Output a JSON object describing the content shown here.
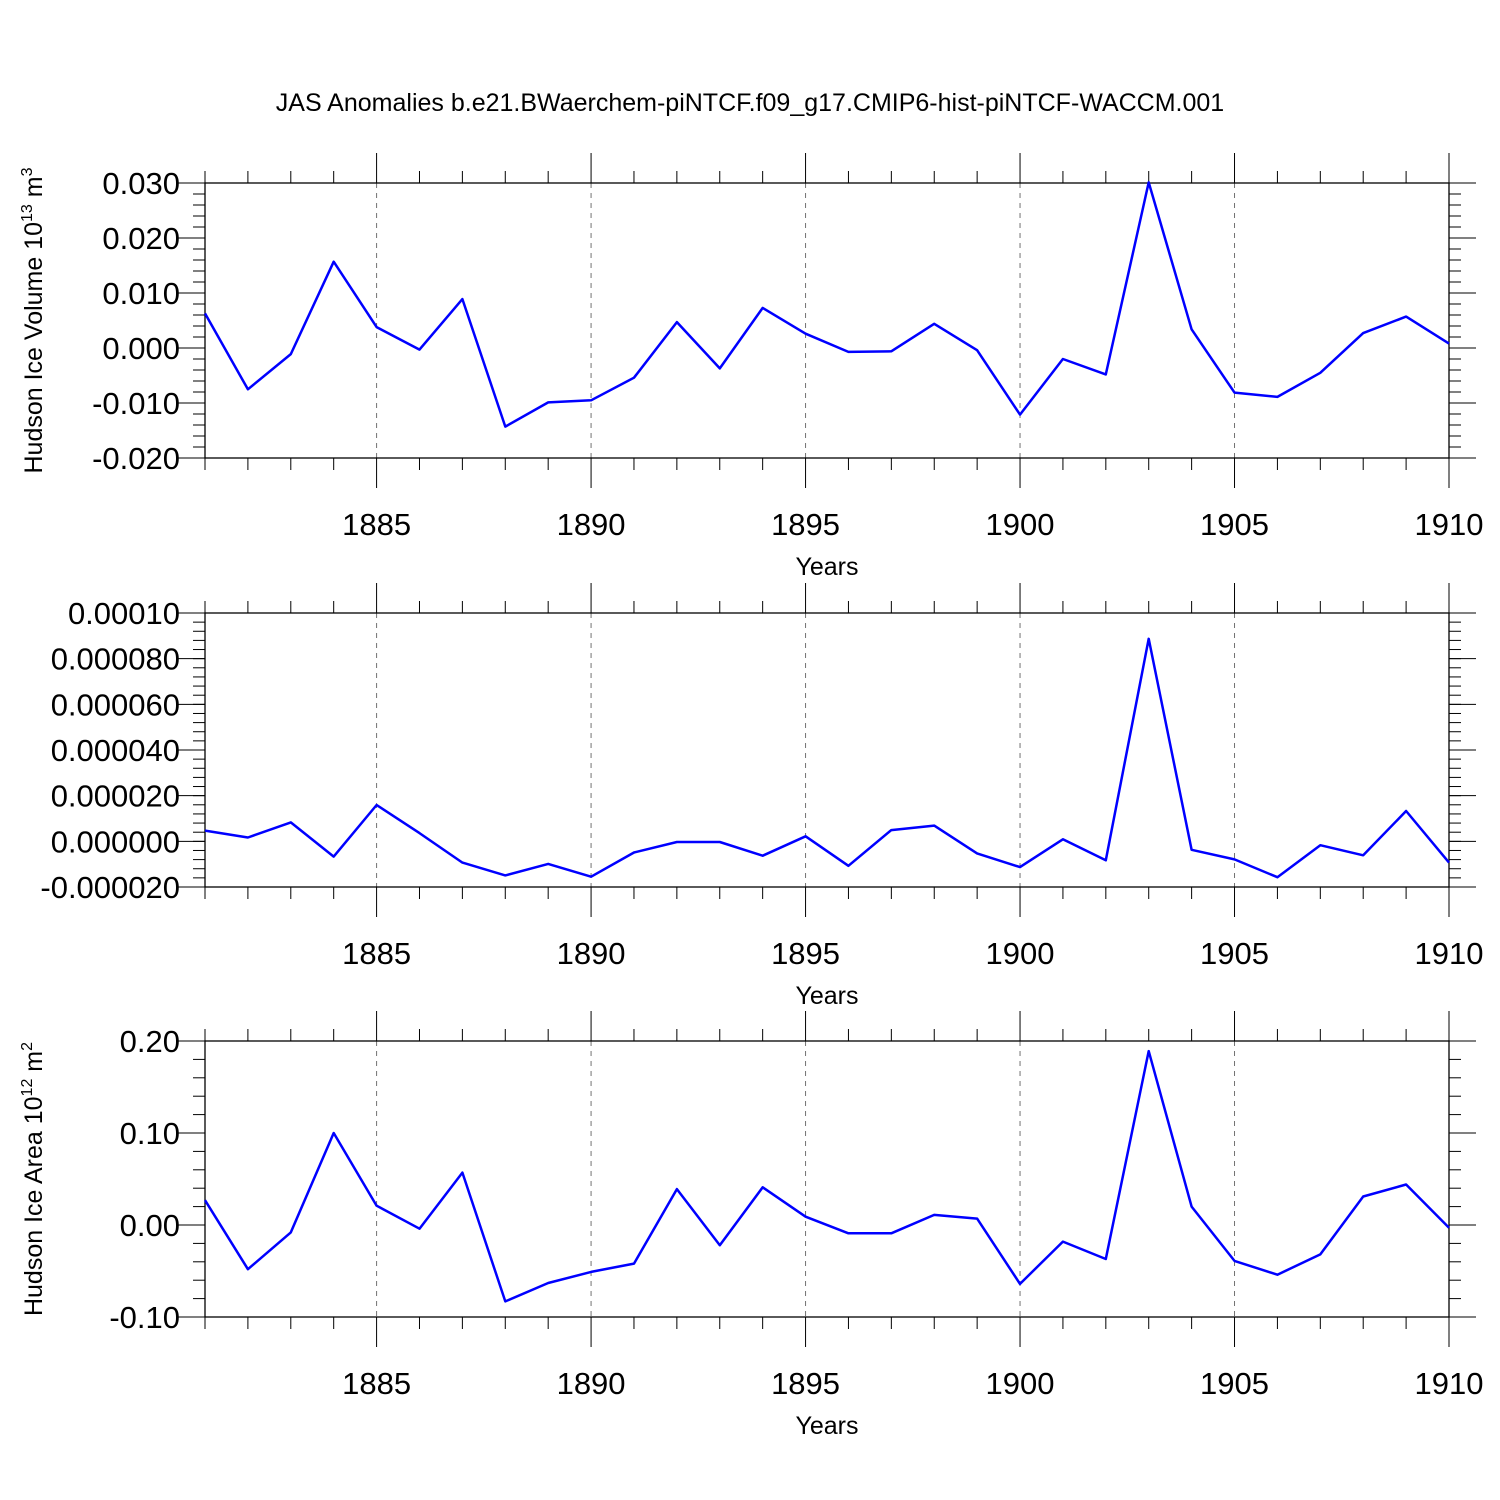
{
  "title": "JAS Anomalies b.e21.BWaerchem-piNTCF.f09_g17.CMIP6-hist-piNTCF-WACCM.001",
  "colors": {
    "series": "#0000ff"
  },
  "chart_data": [
    {
      "type": "line",
      "name": "volume",
      "ylabel_main": "Hudson Ice Volume 10",
      "ylabel_sup": "13",
      "ylabel_unit": " m",
      "ylabel_unit_sup": "3",
      "xlabel": "Years",
      "xlim": [
        1881,
        1910
      ],
      "ylim": [
        -0.02,
        0.03
      ],
      "x_ticks": [
        1885,
        1890,
        1895,
        1900,
        1905,
        1910
      ],
      "y_ticks": [
        -0.02,
        -0.01,
        0.0,
        0.01,
        0.02,
        0.03
      ],
      "y_tick_labels": [
        "-0.020",
        "-0.010",
        "0.000",
        "0.010",
        "0.020",
        "0.030"
      ],
      "y_minor_step": 0.002,
      "x": [
        1881,
        1882,
        1883,
        1884,
        1885,
        1886,
        1887,
        1888,
        1889,
        1890,
        1891,
        1892,
        1893,
        1894,
        1895,
        1896,
        1897,
        1898,
        1899,
        1900,
        1901,
        1902,
        1903,
        1904,
        1905,
        1906,
        1907,
        1908,
        1909,
        1910
      ],
      "values": [
        0.0063,
        -0.0075,
        -0.0011,
        0.0157,
        0.0038,
        -0.0003,
        0.0089,
        -0.0143,
        -0.0099,
        -0.0095,
        -0.0054,
        0.0047,
        -0.0037,
        0.0073,
        0.0026,
        -0.0007,
        -0.0006,
        0.0044,
        -0.0004,
        -0.0121,
        -0.002,
        -0.0048,
        0.0301,
        0.0034,
        -0.0081,
        -0.0089,
        -0.0045,
        0.0027,
        0.0057,
        0.0008
      ]
    },
    {
      "type": "line",
      "name": "thickness",
      "ylabel_main": "",
      "ylabel_sup": "",
      "ylabel_unit": "",
      "ylabel_unit_sup": "",
      "xlabel": "Years",
      "xlim": [
        1881,
        1910
      ],
      "ylim": [
        -2e-05,
        0.0001
      ],
      "x_ticks": [
        1885,
        1890,
        1895,
        1900,
        1905,
        1910
      ],
      "y_ticks": [
        -2e-05,
        0.0,
        2e-05,
        4e-05,
        6e-05,
        8e-05,
        0.0001
      ],
      "y_tick_labels": [
        "-0.000020",
        "0.000000",
        "0.000020",
        "0.000040",
        "0.000060",
        "0.000080",
        "0.00010"
      ],
      "y_minor_step": 4e-06,
      "x": [
        1881,
        1882,
        1883,
        1884,
        1885,
        1886,
        1887,
        1888,
        1889,
        1890,
        1891,
        1892,
        1893,
        1894,
        1895,
        1896,
        1897,
        1898,
        1899,
        1900,
        1901,
        1902,
        1903,
        1904,
        1905,
        1906,
        1907,
        1908,
        1909,
        1910
      ],
      "values": [
        4.7e-06,
        1.7e-06,
        8.3e-06,
        -6.7e-06,
        1.59e-05,
        3.6e-06,
        -9.3e-06,
        -1.49e-05,
        -9.9e-06,
        -1.55e-05,
        -4.9e-06,
        -3e-07,
        -3e-07,
        -6.3e-06,
        2.2e-06,
        -1.07e-05,
        4.9e-06,
        6.9e-06,
        -5.3e-06,
        -1.13e-05,
        9e-07,
        -8.3e-06,
        8.87e-05,
        -3.7e-06,
        -7.9e-06,
        -1.57e-05,
        -1.7e-06,
        -6.1e-06,
        1.33e-05,
        -9.3e-06
      ]
    },
    {
      "type": "line",
      "name": "area",
      "ylabel_main": "Hudson Ice Area 10",
      "ylabel_sup": "12",
      "ylabel_unit": " m",
      "ylabel_unit_sup": "2",
      "xlabel": "Years",
      "xlim": [
        1881,
        1910
      ],
      "ylim": [
        -0.1,
        0.2
      ],
      "x_ticks": [
        1885,
        1890,
        1895,
        1900,
        1905,
        1910
      ],
      "y_ticks": [
        -0.1,
        0.0,
        0.1,
        0.2
      ],
      "y_tick_labels": [
        "-0.10",
        "0.00",
        "0.10",
        "0.20"
      ],
      "y_minor_step": 0.02,
      "x": [
        1881,
        1882,
        1883,
        1884,
        1885,
        1886,
        1887,
        1888,
        1889,
        1890,
        1891,
        1892,
        1893,
        1894,
        1895,
        1896,
        1897,
        1898,
        1899,
        1900,
        1901,
        1902,
        1903,
        1904,
        1905,
        1906,
        1907,
        1908,
        1909,
        1910
      ],
      "values": [
        0.027,
        -0.048,
        -0.008,
        0.1,
        0.021,
        -0.004,
        0.057,
        -0.083,
        -0.063,
        -0.051,
        -0.042,
        0.039,
        -0.022,
        0.041,
        0.009,
        -0.009,
        -0.009,
        0.011,
        0.007,
        -0.064,
        -0.018,
        -0.037,
        0.189,
        0.02,
        -0.039,
        -0.054,
        -0.032,
        0.031,
        0.044,
        -0.003
      ]
    }
  ]
}
